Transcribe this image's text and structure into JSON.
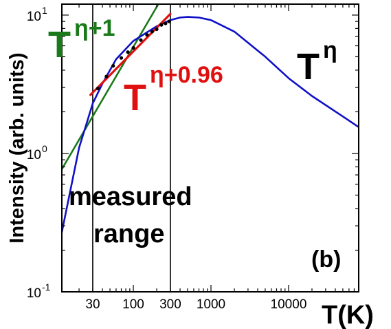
{
  "chart_data": {
    "type": "line",
    "panel_label": "(b)",
    "xlabel": "T(K)",
    "ylabel": "Intensity (arb. units)",
    "x_scale": "log",
    "y_scale": "log",
    "xlim": [
      12,
      80000
    ],
    "ylim": [
      0.1,
      12
    ],
    "x_ticks": [
      {
        "value": 30,
        "label": "30"
      },
      {
        "value": 100,
        "label": "100"
      },
      {
        "value": 300,
        "label": "300"
      },
      {
        "value": 1000,
        "label": "1000"
      },
      {
        "value": 10000,
        "label": "10000"
      }
    ],
    "y_ticks": [
      {
        "value": 0.1,
        "base": "10",
        "exp": "-1"
      },
      {
        "value": 1,
        "base": "10",
        "exp": "0"
      },
      {
        "value": 10,
        "base": "10",
        "exp": "1"
      }
    ],
    "grid": false,
    "series": [
      {
        "name": "T",
        "name_sup": "η",
        "color": "#1010c8",
        "style": "solid",
        "x": [
          12,
          20,
          30,
          40,
          60,
          100,
          150,
          200,
          300,
          400,
          500,
          700,
          1000,
          2000,
          5000,
          10000,
          20000,
          50000,
          80000
        ],
        "y": [
          0.27,
          1.1,
          2.3,
          3.2,
          4.8,
          6.5,
          7.5,
          8.3,
          9.2,
          9.6,
          9.7,
          9.6,
          9.2,
          7.6,
          5.0,
          3.5,
          2.6,
          1.85,
          1.55
        ]
      },
      {
        "name": "T",
        "name_sup": "η+1",
        "color": "#1a7a1a",
        "style": "solid",
        "x": [
          12,
          210
        ],
        "y": [
          0.77,
          12
        ]
      },
      {
        "name": "T",
        "name_sup": "η+0.96",
        "color": "#e01010",
        "style": "solid",
        "x": [
          28,
          300
        ],
        "y": [
          2.65,
          10.2
        ]
      },
      {
        "name": "",
        "color": "#000000",
        "style": "markers",
        "x": [
          35,
          45,
          55,
          70,
          85,
          100,
          125,
          150,
          175,
          200,
          230,
          260,
          290
        ],
        "y": [
          2.95,
          3.6,
          4.3,
          4.9,
          5.4,
          5.8,
          6.6,
          7.2,
          7.6,
          7.9,
          8.5,
          8.7,
          9.0
        ]
      }
    ],
    "vlines": [
      {
        "x": 30,
        "label": ""
      },
      {
        "x": 300,
        "label": ""
      }
    ],
    "annotations": [
      {
        "text": "measured"
      },
      {
        "text": "range"
      }
    ],
    "colors": {
      "axis": "#000000",
      "background": "#ffffff"
    }
  }
}
